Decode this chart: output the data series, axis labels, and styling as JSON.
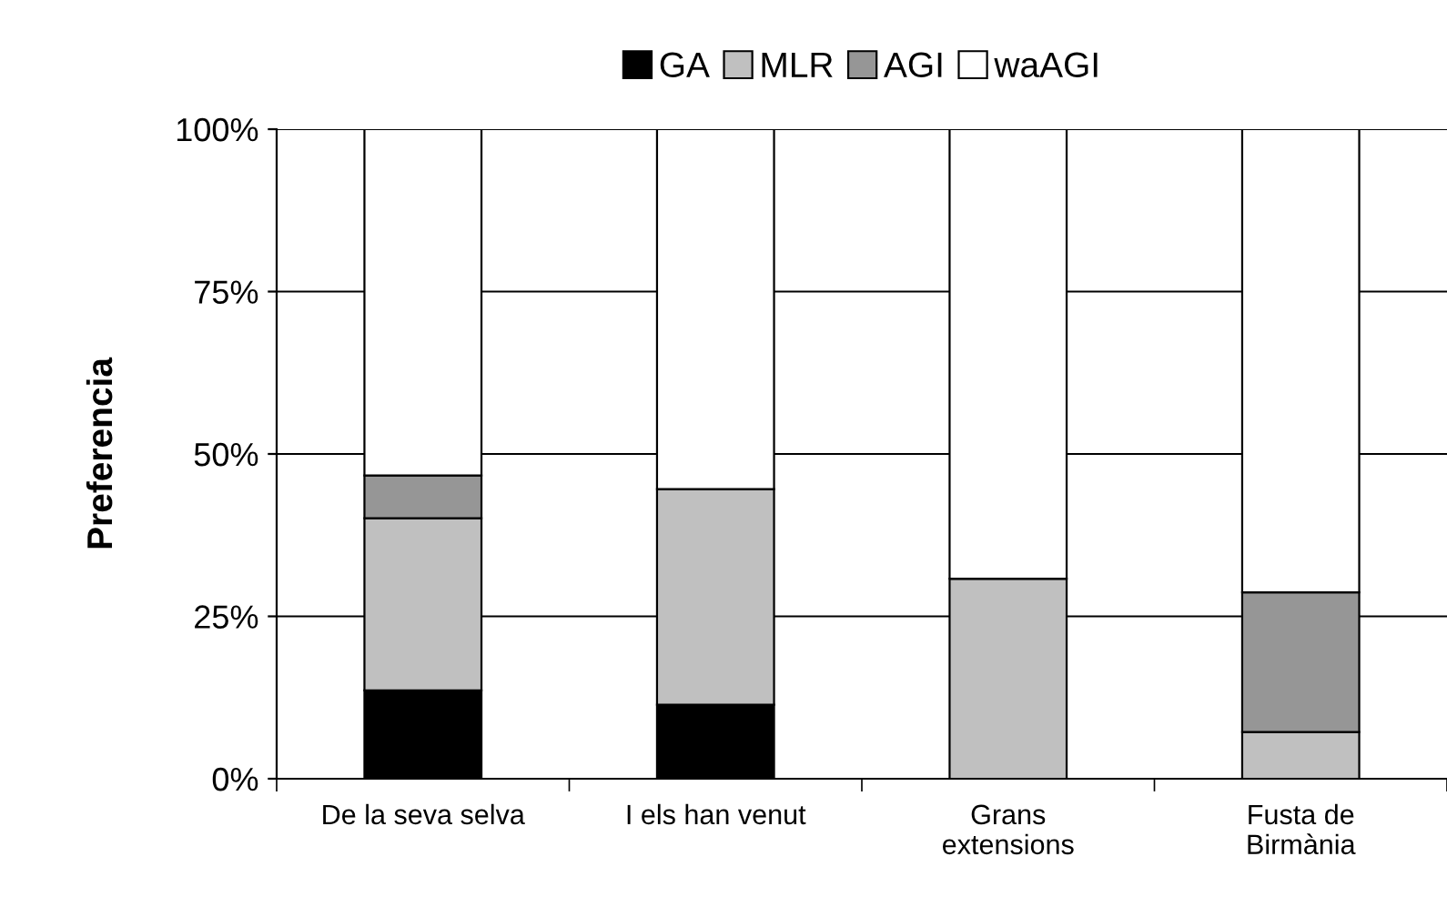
{
  "chart_data": {
    "type": "bar",
    "stacked": true,
    "ylabel": "Preferencia",
    "categories": [
      "De la seva selva",
      "I els han venut",
      "Grans\nextensions",
      "Fusta de\nBirmània"
    ],
    "series": [
      {
        "name": "GA",
        "color": "#000000",
        "values": [
          13.6,
          11.4,
          0,
          0
        ]
      },
      {
        "name": "MLR",
        "color": "#c0c0c0",
        "values": [
          26.5,
          33.2,
          30.8,
          7.2
        ]
      },
      {
        "name": "AGI",
        "color": "#969696",
        "values": [
          6.6,
          0,
          0,
          21.5
        ]
      },
      {
        "name": "waAGI",
        "color": "#ffffff",
        "values": [
          53.3,
          55.4,
          69.2,
          71.3
        ]
      }
    ],
    "ylim": [
      0,
      100
    ],
    "yticks": [
      {
        "value": 0,
        "label": "0%"
      },
      {
        "value": 25,
        "label": "25%"
      },
      {
        "value": 50,
        "label": "50%"
      },
      {
        "value": 75,
        "label": "75%"
      },
      {
        "value": 100,
        "label": "100%"
      }
    ],
    "grid": "y",
    "legend": "top"
  }
}
